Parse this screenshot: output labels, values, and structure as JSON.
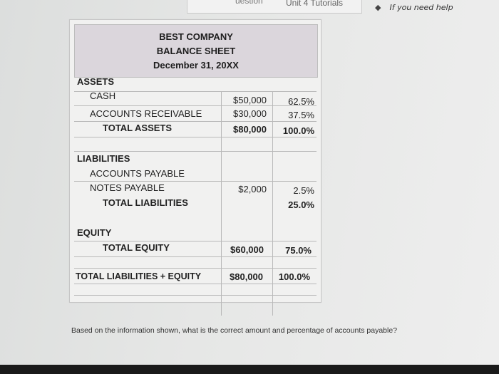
{
  "topbar": {
    "tab_left": "uestion",
    "tab_right": "Unit 4 Tutorials",
    "help_arrow": "◆",
    "help_text": "If you need help"
  },
  "sheet": {
    "company": "BEST COMPANY",
    "title": "BALANCE SHEET",
    "date": "December 31, 20XX",
    "assets": {
      "heading": "ASSETS",
      "rows": [
        {
          "label": "CASH",
          "amount": "$50,000",
          "percent": "62.5%"
        },
        {
          "label": "ACCOUNTS RECEIVABLE",
          "amount": "$30,000",
          "percent": "37.5%"
        }
      ],
      "total": {
        "label": "TOTAL ASSETS",
        "amount": "$80,000",
        "percent": "100.0%"
      }
    },
    "liabilities": {
      "heading": "LIABILITIES",
      "rows": [
        {
          "label": "ACCOUNTS PAYABLE",
          "amount": "",
          "percent": ""
        },
        {
          "label": "NOTES PAYABLE",
          "amount": "$2,000",
          "percent": "2.5%"
        }
      ],
      "total": {
        "label": "TOTAL LIABILITIES",
        "amount": "",
        "percent": "25.0%"
      }
    },
    "equity": {
      "heading": "EQUITY",
      "total": {
        "label": "TOTAL EQUITY",
        "amount": "$60,000",
        "percent": "75.0%"
      }
    },
    "grand_total": {
      "label": "TOTAL LIABILITIES + EQUITY",
      "amount": "$80,000",
      "percent": "100.0%"
    }
  },
  "question": "Based on the information shown, what is the correct amount and percentage of accounts payable?"
}
